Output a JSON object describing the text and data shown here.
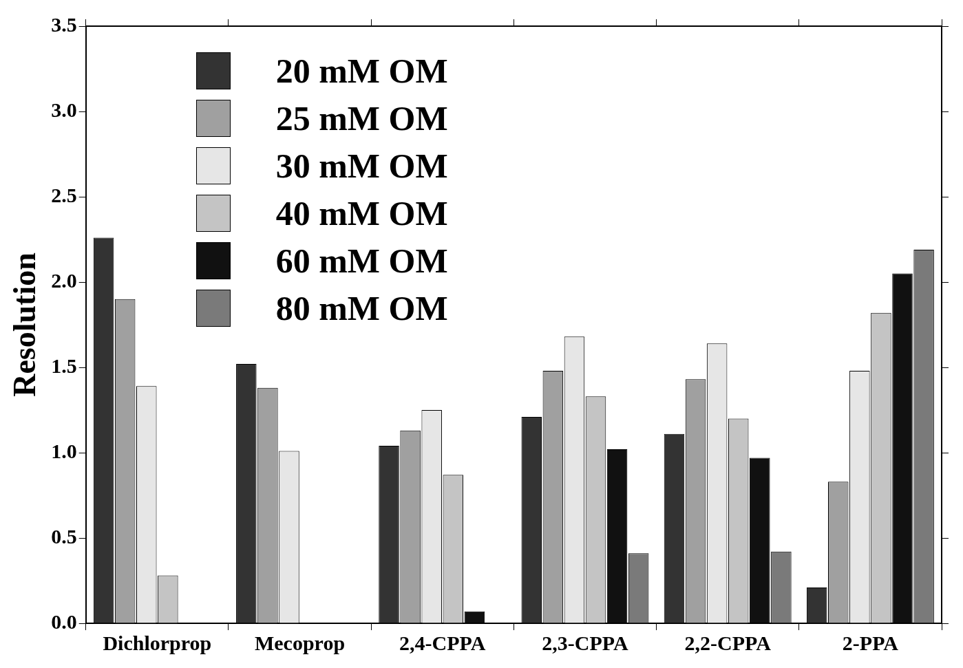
{
  "chart_data": {
    "type": "bar",
    "ylabel": "Resolution",
    "categories": [
      "Dichlorprop",
      "Mecoprop",
      "2,4-CPPA",
      "2,3-CPPA",
      "2,2-CPPA",
      "2-PPA"
    ],
    "series": [
      {
        "name": "20 mM OM",
        "color": "#333333",
        "values": [
          2.26,
          1.52,
          1.04,
          1.21,
          1.11,
          0.21
        ]
      },
      {
        "name": "25 mM OM",
        "color": "#a0a0a0",
        "values": [
          1.9,
          1.38,
          1.13,
          1.48,
          1.43,
          0.83
        ]
      },
      {
        "name": "30 mM OM",
        "color": "#e6e6e6",
        "values": [
          1.39,
          1.01,
          1.25,
          1.68,
          1.64,
          1.48
        ]
      },
      {
        "name": "40 mM OM",
        "color": "#c4c4c4",
        "values": [
          0.28,
          null,
          0.87,
          1.33,
          1.2,
          1.82
        ]
      },
      {
        "name": "60 mM OM",
        "color": "#111111",
        "values": [
          null,
          null,
          0.07,
          1.02,
          0.97,
          2.05
        ]
      },
      {
        "name": "80 mM OM",
        "color": "#7a7a7a",
        "values": [
          null,
          null,
          null,
          0.41,
          0.42,
          2.19
        ]
      }
    ],
    "ylim": [
      0,
      3.5
    ],
    "yticks": [
      {
        "value": 0,
        "label": "0.0"
      },
      0.5,
      {
        "value": 1,
        "label": "1.0"
      },
      1.5,
      {
        "value": 2,
        "label": "2.0"
      },
      2.5,
      {
        "value": 3,
        "label": "3.0"
      },
      3.5
    ],
    "legend": "top left"
  }
}
